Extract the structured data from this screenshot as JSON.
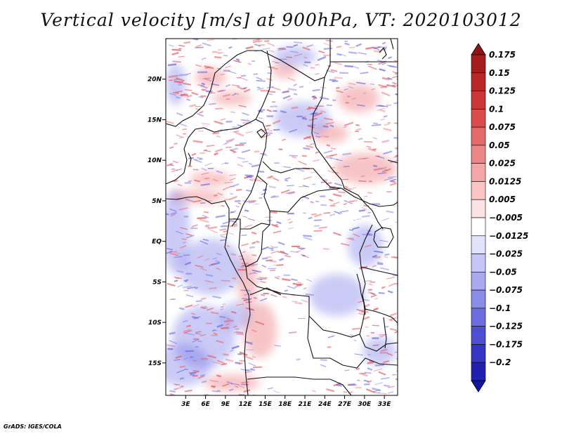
{
  "title": "Vertical velocity [m/s] at 900hPa, VT: 2020103012",
  "credit": "GrADS: IGES/COLA",
  "map": {
    "lat_range": [
      -19,
      25
    ],
    "lon_range": [
      0,
      35
    ],
    "lat_ticks": [
      {
        "value": 20,
        "label": "20N"
      },
      {
        "value": 15,
        "label": "15N"
      },
      {
        "value": 10,
        "label": "10N"
      },
      {
        "value": 5,
        "label": "5N"
      },
      {
        "value": 0,
        "label": "EQ"
      },
      {
        "value": -5,
        "label": "5S"
      },
      {
        "value": -10,
        "label": "10S"
      },
      {
        "value": -15,
        "label": "15S"
      }
    ],
    "lon_ticks": [
      {
        "value": 3,
        "label": "3E"
      },
      {
        "value": 6,
        "label": "6E"
      },
      {
        "value": 9,
        "label": "9E"
      },
      {
        "value": 12,
        "label": "12E"
      },
      {
        "value": 15,
        "label": "15E"
      },
      {
        "value": 18,
        "label": "18E"
      },
      {
        "value": 21,
        "label": "21E"
      },
      {
        "value": 24,
        "label": "24E"
      },
      {
        "value": 27,
        "label": "27E"
      },
      {
        "value": 30,
        "label": "30E"
      },
      {
        "value": 33,
        "label": "33E"
      }
    ]
  },
  "colorbar": {
    "levels": [
      {
        "label": "0.175",
        "color": "#a51c1c"
      },
      {
        "label": "0.15",
        "color": "#b92727"
      },
      {
        "label": "0.125",
        "color": "#cb3535"
      },
      {
        "label": "0.1",
        "color": "#da4b4b"
      },
      {
        "label": "0.075",
        "color": "#e46a6a"
      },
      {
        "label": "0.05",
        "color": "#ed8888"
      },
      {
        "label": "0.025",
        "color": "#f4a6a6"
      },
      {
        "label": "0.0125",
        "color": "#f9c5c5"
      },
      {
        "label": "0.005",
        "color": "#fce2e2"
      },
      {
        "label": "−0.005",
        "color": "#ffffff"
      },
      {
        "label": "−0.0125",
        "color": "#e2e2fc"
      },
      {
        "label": "−0.025",
        "color": "#c6c6f6"
      },
      {
        "label": "−0.05",
        "color": "#a9a9ef"
      },
      {
        "label": "−0.075",
        "color": "#8b8be8"
      },
      {
        "label": "−0.1",
        "color": "#6c6cdf"
      },
      {
        "label": "−0.125",
        "color": "#4f4fd3"
      },
      {
        "label": "−0.175",
        "color": "#3535c4"
      },
      {
        "label": "−0.2",
        "color": "#2121b0"
      }
    ],
    "top_arrow_color": "#8f1414",
    "bottom_arrow_color": "#15159c"
  },
  "field": {
    "positive_color": "#e8595f",
    "negative_color": "#6a6ae6",
    "land_color": "#ffffff",
    "border_color": "#111111"
  }
}
